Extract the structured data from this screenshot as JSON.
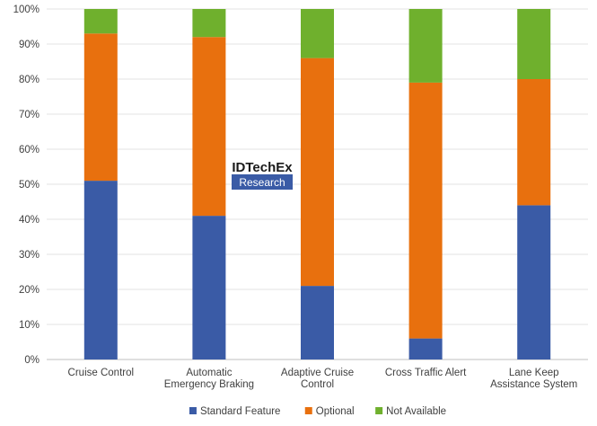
{
  "chart_data": {
    "type": "bar",
    "stacked": true,
    "categories": [
      "Cruise Control",
      "Automatic\nEmergency Braking",
      "Adaptive Cruise\nControl",
      "Cross Traffic Alert",
      "Lane Keep\nAssistance System"
    ],
    "series": [
      {
        "name": "Standard Feature",
        "color": "#3a5ba6",
        "values": [
          51,
          41,
          21,
          6,
          44
        ]
      },
      {
        "name": "Optional",
        "color": "#e8700e",
        "values": [
          42,
          51,
          65,
          73,
          36
        ]
      },
      {
        "name": "Not Available",
        "color": "#6fb02d",
        "values": [
          7,
          8,
          14,
          21,
          20
        ]
      }
    ],
    "ylim": [
      0,
      100
    ],
    "yticks": [
      "0%",
      "10%",
      "20%",
      "30%",
      "40%",
      "50%",
      "60%",
      "70%",
      "80%",
      "90%",
      "100%"
    ],
    "grid": true,
    "legend_position": "bottom"
  },
  "watermark": {
    "title": "IDTechEx",
    "subtitle": "Research"
  }
}
